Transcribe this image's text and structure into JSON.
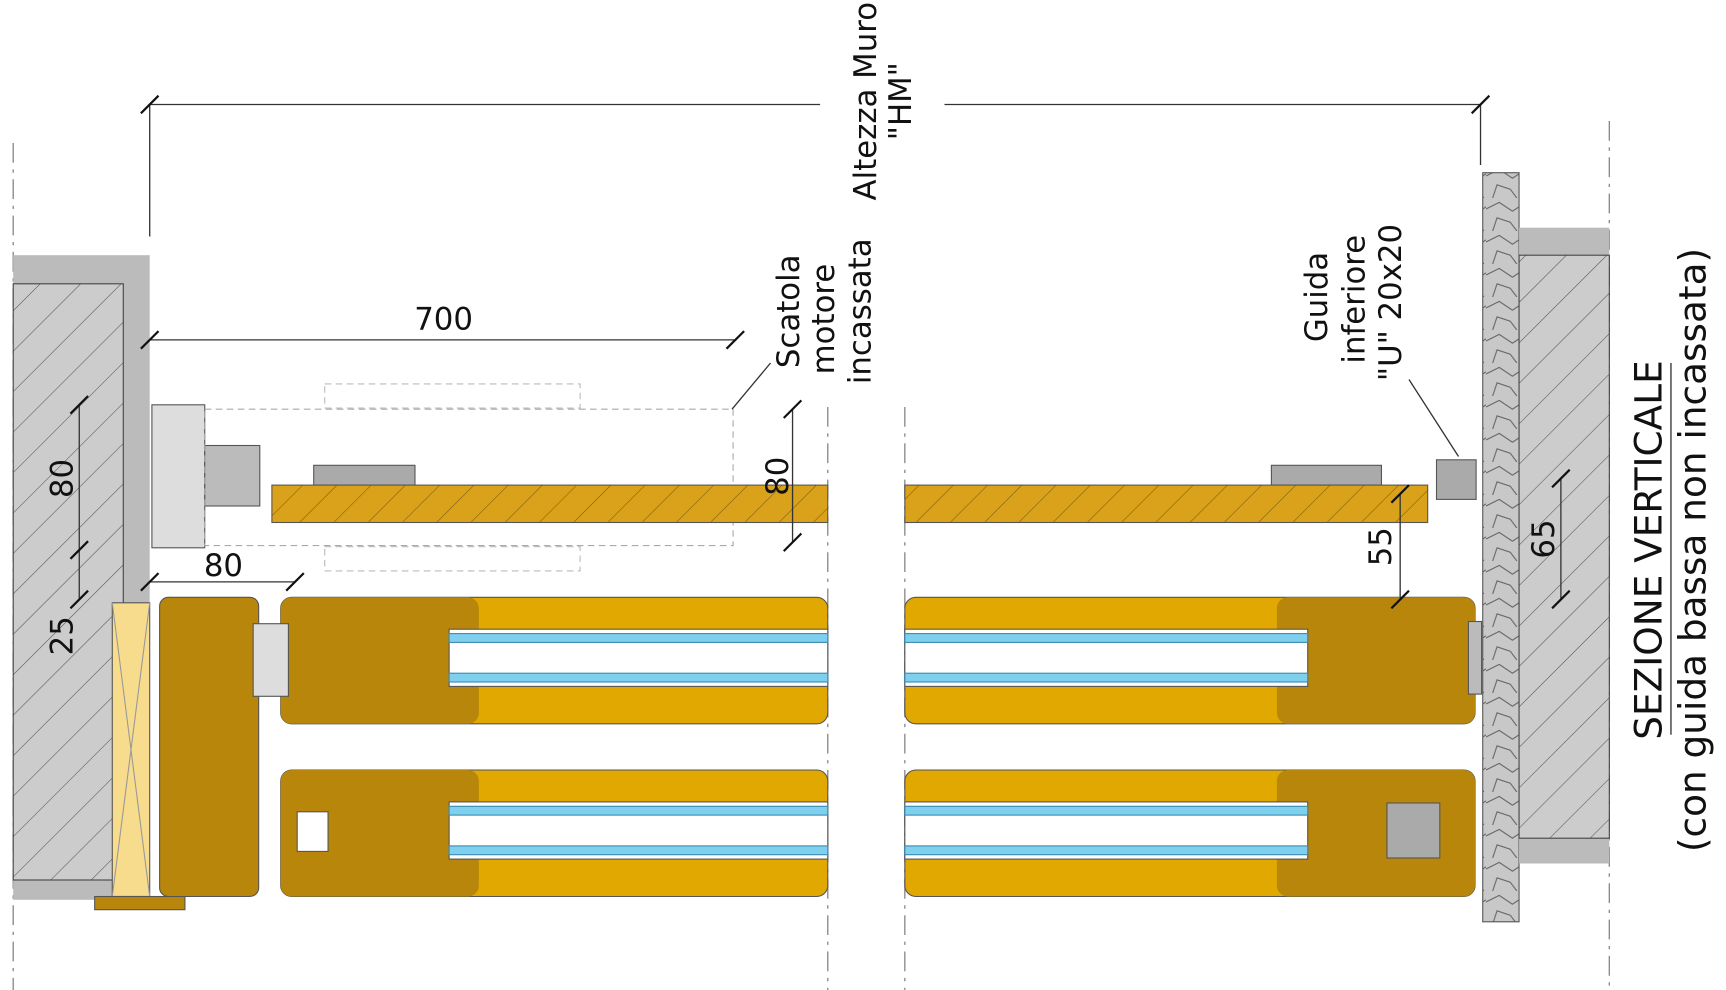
{
  "title": {
    "line1": "SEZIONE VERTICALE",
    "line2": "(con guida bassa non incassata)"
  },
  "dimensions": {
    "wall_height": [
      "Altezza Muro",
      "\"HM\""
    ],
    "width_700": "700",
    "left_80_vertical": "80",
    "left_80_horizontal": "80",
    "left_25": "25",
    "center_80": "80",
    "right_55": "55",
    "right_65": "65"
  },
  "labels": {
    "motor_box": [
      "Scatola",
      "motore",
      "incassata"
    ],
    "lower_guide": [
      "Guida",
      "inferiore",
      "\"U\" 20x20"
    ]
  }
}
